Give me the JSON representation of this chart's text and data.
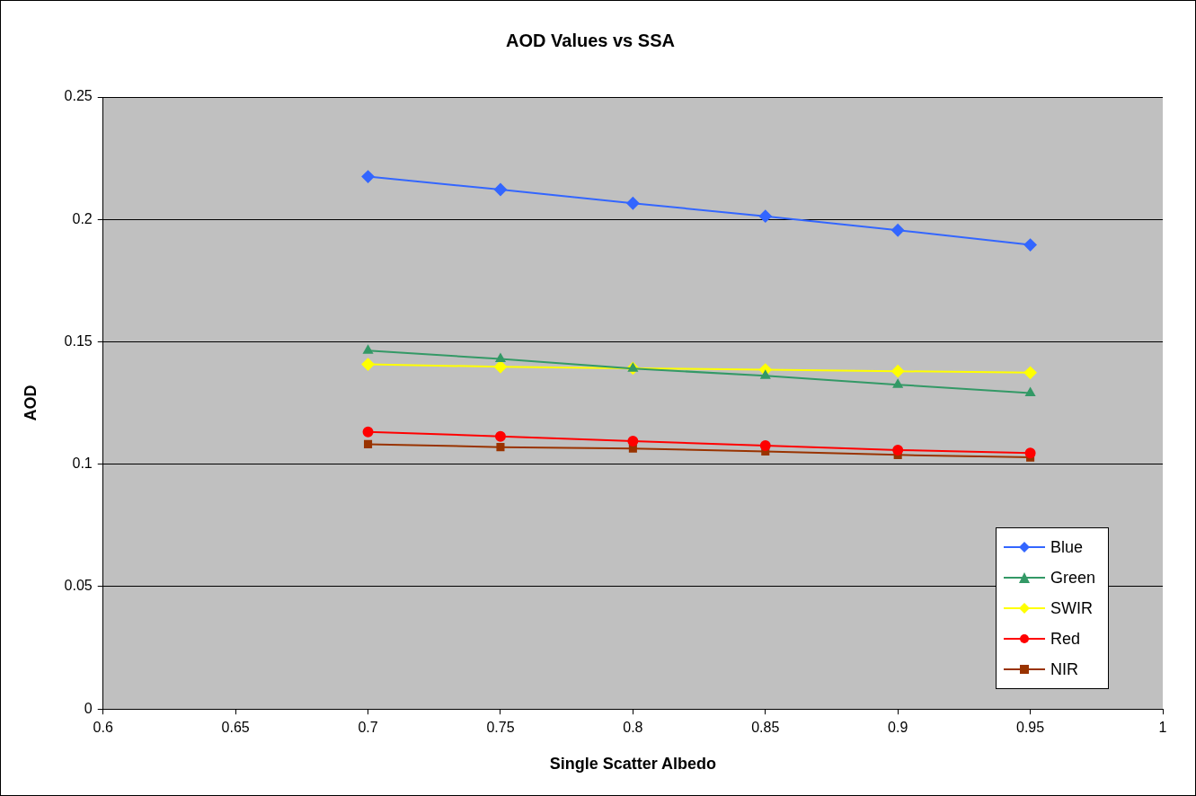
{
  "chart_data": {
    "type": "line",
    "title": "AOD Values vs SSA",
    "xlabel": "Single Scatter Albedo",
    "ylabel": "AOD",
    "x": [
      0.7,
      0.75,
      0.8,
      0.85,
      0.9,
      0.95
    ],
    "series": [
      {
        "name": "Blue",
        "color": "#3366ff",
        "marker": "diamond",
        "values": [
          0.2175,
          0.2122,
          0.2066,
          0.2013,
          0.1956,
          0.1896
        ]
      },
      {
        "name": "Green",
        "color": "#339966",
        "marker": "triangle",
        "values": [
          0.1464,
          0.143,
          0.1391,
          0.1361,
          0.1325,
          0.1291
        ]
      },
      {
        "name": "SWIR",
        "color": "#ffff00",
        "marker": "diamond",
        "values": [
          0.1408,
          0.1398,
          0.1392,
          0.1386,
          0.138,
          0.1374
        ]
      },
      {
        "name": "Red",
        "color": "#ff0000",
        "marker": "circle",
        "values": [
          0.1132,
          0.1114,
          0.1094,
          0.1076,
          0.1058,
          0.1046
        ]
      },
      {
        "name": "NIR",
        "color": "#993300",
        "marker": "square",
        "values": [
          0.1082,
          0.107,
          0.1064,
          0.1052,
          0.1038,
          0.1028
        ]
      }
    ],
    "xlim": [
      0.6,
      1
    ],
    "xticks": [
      0.6,
      0.65,
      0.7,
      0.75,
      0.8,
      0.85,
      0.9,
      0.95,
      1
    ],
    "ylim": [
      0,
      0.25
    ],
    "yticks": [
      0,
      0.05,
      0.1,
      0.15,
      0.2,
      0.25
    ],
    "grid": "y",
    "legend": "bottom right",
    "line_style": "solid"
  }
}
